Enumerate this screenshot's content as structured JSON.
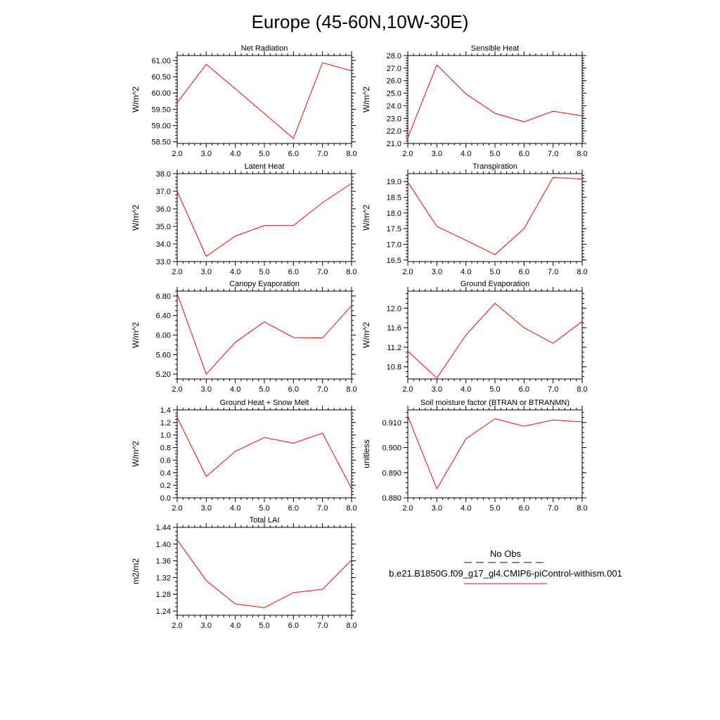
{
  "figure": {
    "title": "Europe (45-60N,10W-30E)"
  },
  "colors": {
    "series": "#ff0000",
    "obs": "#00008b",
    "axes": "#000000"
  },
  "legend": {
    "obs_label": "No Obs",
    "model_label": "b.e21.B1850G.f09_g17_gl4.CMIP6-piControl-withism.001"
  },
  "chart_data": [
    {
      "type": "line",
      "title": "Net Radiation",
      "ylabel": "W/m^2",
      "x": [
        2,
        3,
        4,
        5,
        6,
        7,
        8
      ],
      "xticks": [
        "2.0",
        "3.0",
        "4.0",
        "5.0",
        "6.0",
        "7.0",
        "8.0"
      ],
      "xlim": [
        2,
        8
      ],
      "ylim": [
        58.45,
        61.15
      ],
      "yticks": [
        58.5,
        59.0,
        59.5,
        60.0,
        60.5,
        61.0
      ],
      "ydec": 2,
      "yminor": 0.1,
      "series": [
        {
          "values": [
            59.7,
            60.88,
            60.13,
            59.37,
            58.6,
            60.93,
            60.68
          ]
        }
      ]
    },
    {
      "type": "line",
      "title": "Sensible Heat",
      "ylabel": "W/m^2",
      "x": [
        2,
        3,
        4,
        5,
        6,
        7,
        8
      ],
      "xticks": [
        "2.0",
        "3.0",
        "4.0",
        "5.0",
        "6.0",
        "7.0",
        "8.0"
      ],
      "xlim": [
        2,
        8
      ],
      "ylim": [
        21.0,
        28.0
      ],
      "yticks": [
        21.0,
        22.0,
        23.0,
        24.0,
        25.0,
        26.0,
        27.0,
        28.0
      ],
      "ydec": 1,
      "yminor": 0.2,
      "series": [
        {
          "values": [
            21.45,
            27.25,
            24.95,
            23.4,
            22.72,
            23.57,
            23.2
          ]
        }
      ]
    },
    {
      "type": "line",
      "title": "Latent Heat",
      "ylabel": "W/m^2",
      "x": [
        2,
        3,
        4,
        5,
        6,
        7,
        8
      ],
      "xticks": [
        "2.0",
        "3.0",
        "4.0",
        "5.0",
        "6.0",
        "7.0",
        "8.0"
      ],
      "xlim": [
        2,
        8
      ],
      "ylim": [
        33.0,
        38.0
      ],
      "yticks": [
        33.0,
        34.0,
        35.0,
        36.0,
        37.0,
        38.0
      ],
      "ydec": 1,
      "yminor": 0.2,
      "series": [
        {
          "values": [
            37.0,
            33.3,
            34.45,
            35.05,
            35.05,
            36.35,
            37.45
          ]
        }
      ]
    },
    {
      "type": "line",
      "title": "Transpiration",
      "ylabel": "W/m^2",
      "x": [
        2,
        3,
        4,
        5,
        6,
        7,
        8
      ],
      "xticks": [
        "2.0",
        "3.0",
        "4.0",
        "5.0",
        "6.0",
        "7.0",
        "8.0"
      ],
      "xlim": [
        2,
        8
      ],
      "ylim": [
        16.45,
        19.25
      ],
      "yticks": [
        16.5,
        17.0,
        17.5,
        18.0,
        18.5,
        19.0
      ],
      "ydec": 1,
      "yminor": 0.1,
      "series": [
        {
          "values": [
            18.98,
            17.57,
            17.13,
            16.67,
            17.5,
            19.13,
            19.08
          ]
        }
      ]
    },
    {
      "type": "line",
      "title": "Canopy Evaporation",
      "ylabel": "W/m^2",
      "x": [
        2,
        3,
        4,
        5,
        6,
        7,
        8
      ],
      "xticks": [
        "2.0",
        "3.0",
        "4.0",
        "5.0",
        "6.0",
        "7.0",
        "8.0"
      ],
      "xlim": [
        2,
        8
      ],
      "ylim": [
        5.1,
        6.9
      ],
      "yticks": [
        5.2,
        5.6,
        6.0,
        6.4,
        6.8
      ],
      "ydec": 2,
      "yminor": 0.1,
      "series": [
        {
          "values": [
            6.85,
            5.2,
            5.85,
            6.27,
            5.95,
            5.94,
            6.6
          ]
        }
      ]
    },
    {
      "type": "line",
      "title": "Ground Evaporation",
      "ylabel": "W/m^2",
      "x": [
        2,
        3,
        4,
        5,
        6,
        7,
        8
      ],
      "xticks": [
        "2.0",
        "3.0",
        "4.0",
        "5.0",
        "6.0",
        "7.0",
        "8.0"
      ],
      "xlim": [
        2,
        8
      ],
      "ylim": [
        10.55,
        12.35
      ],
      "yticks": [
        10.8,
        11.2,
        11.6,
        12.0
      ],
      "ydec": 1,
      "yminor": 0.1,
      "series": [
        {
          "values": [
            11.12,
            10.57,
            11.45,
            12.1,
            11.6,
            11.28,
            11.73
          ]
        }
      ]
    },
    {
      "type": "line",
      "title": "Ground Heat + Snow Melt",
      "ylabel": "W/m^2",
      "x": [
        2,
        3,
        4,
        5,
        6,
        7,
        8
      ],
      "xticks": [
        "2.0",
        "3.0",
        "4.0",
        "5.0",
        "6.0",
        "7.0",
        "8.0"
      ],
      "xlim": [
        2,
        8
      ],
      "ylim": [
        0.0,
        1.4
      ],
      "yticks": [
        0.0,
        0.2,
        0.4,
        0.6,
        0.8,
        1.0,
        1.2,
        1.4
      ],
      "ydec": 1,
      "yminor": 0.05,
      "series": [
        {
          "values": [
            1.28,
            0.34,
            0.74,
            0.96,
            0.87,
            1.03,
            0.15
          ]
        }
      ]
    },
    {
      "type": "line",
      "title": "Soil moisture factor (BTRAN or BTRANMN)",
      "ylabel": "unitless",
      "x": [
        2,
        3,
        4,
        5,
        6,
        7,
        8
      ],
      "xticks": [
        "2.0",
        "3.0",
        "4.0",
        "5.0",
        "6.0",
        "7.0",
        "8.0"
      ],
      "xlim": [
        2,
        8
      ],
      "ylim": [
        0.88,
        0.915
      ],
      "yticks": [
        0.88,
        0.89,
        0.9,
        0.91
      ],
      "ydec": 3,
      "yminor": 0.002,
      "series": [
        {
          "values": [
            0.9125,
            0.8836,
            0.9035,
            0.9115,
            0.9085,
            0.911,
            0.9102
          ]
        }
      ]
    },
    {
      "type": "line",
      "title": "Total LAI",
      "ylabel": "m2/m2",
      "x": [
        2,
        3,
        4,
        5,
        6,
        7,
        8
      ],
      "xticks": [
        "2.0",
        "3.0",
        "4.0",
        "5.0",
        "6.0",
        "7.0",
        "8.0"
      ],
      "xlim": [
        2,
        8
      ],
      "ylim": [
        1.23,
        1.44
      ],
      "yticks": [
        1.24,
        1.28,
        1.32,
        1.36,
        1.4,
        1.44
      ],
      "ydec": 2,
      "yminor": 0.01,
      "series": [
        {
          "values": [
            1.41,
            1.313,
            1.257,
            1.248,
            1.284,
            1.292,
            1.362
          ]
        }
      ]
    }
  ]
}
